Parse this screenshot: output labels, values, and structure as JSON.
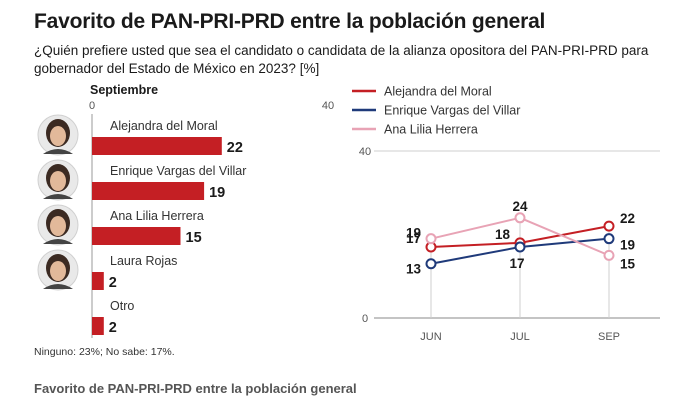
{
  "header": {
    "title": "Favorito de PAN-PRI-PRD entre la población general",
    "subtitle": "¿Quién prefiere usted que sea el candidato o candidata de la alianza opositora del PAN-PRI-PRD para gobernador del Estado de México en 2023? [%]"
  },
  "footnote": "Ninguno: 23%; No sabe: 17%.",
  "caption": "Favorito de PAN-PRI-PRD entre la población general",
  "colors": {
    "bar": "#c41f24",
    "series1": "#c41f24",
    "series2": "#1f3a7a",
    "series3": "#e8a3b5",
    "grid": "#cfcfcf"
  },
  "chart_data": [
    {
      "type": "bar",
      "title": "Septiembre",
      "orientation": "horizontal",
      "categories": [
        "Alejandra del Moral",
        "Enrique Vargas del Villar",
        "Ana Lilia Herrera",
        "Laura Rojas",
        "Otro"
      ],
      "values": [
        22,
        19,
        15,
        2,
        2
      ],
      "xlim": [
        0,
        40
      ],
      "xticks": [
        "0",
        "40"
      ],
      "photos": [
        true,
        true,
        true,
        true,
        false
      ]
    },
    {
      "type": "line",
      "x": [
        "JUN",
        "JUL",
        "SEP"
      ],
      "ylim": [
        0,
        40
      ],
      "yticks": [
        "0",
        "40"
      ],
      "grid": true,
      "legend_position": "top",
      "series": [
        {
          "name": "Alejandra del Moral",
          "values": [
            17,
            18,
            22
          ],
          "labels": [
            "17",
            "18",
            "22"
          ]
        },
        {
          "name": "Enrique Vargas del Villar",
          "values": [
            13,
            17,
            19
          ],
          "labels": [
            "13",
            "17",
            "19"
          ]
        },
        {
          "name": "Ana Lilia Herrera",
          "values": [
            19,
            24,
            15
          ],
          "labels": [
            "19",
            "24",
            "15"
          ]
        }
      ]
    }
  ]
}
